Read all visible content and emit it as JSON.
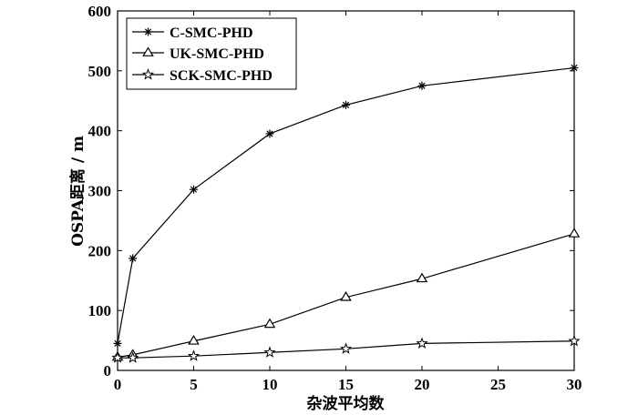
{
  "chart_data": {
    "type": "line",
    "xlabel": "杂波平均数",
    "ylabel": "OSPA距离 / m",
    "xlim": [
      0,
      30
    ],
    "ylim": [
      0,
      600
    ],
    "xticks": [
      0,
      5,
      10,
      15,
      20,
      25,
      30
    ],
    "yticks": [
      0,
      100,
      200,
      300,
      400,
      500,
      600
    ],
    "grid": false,
    "legend_position": "top-left",
    "x": [
      0,
      1,
      5,
      10,
      15,
      20,
      30
    ],
    "series": [
      {
        "name": "C-SMC-PHD",
        "marker": "asterisk",
        "values": [
          45,
          187,
          302,
          395,
          443,
          475,
          505
        ]
      },
      {
        "name": "UK-SMC-PHD",
        "marker": "triangle",
        "values": [
          22,
          26,
          49,
          77,
          122,
          153,
          228
        ]
      },
      {
        "name": "SCK-SMC-PHD",
        "marker": "star",
        "values": [
          21,
          21,
          24,
          30,
          36,
          45,
          49
        ]
      }
    ],
    "colors": {
      "line": "#000000",
      "background": "#ffffff"
    }
  }
}
